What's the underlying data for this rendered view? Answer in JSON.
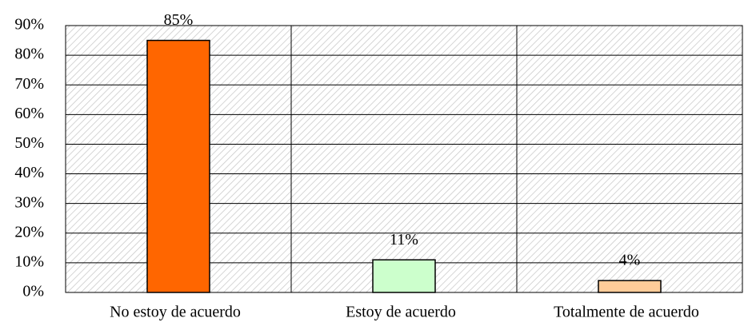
{
  "chart_data": {
    "type": "bar",
    "categories": [
      "No estoy de acuerdo",
      "Estoy de acuerdo",
      "Totalmente de acuerdo"
    ],
    "values": [
      85,
      11,
      4
    ],
    "value_labels": [
      "85%",
      "11%",
      "4%"
    ],
    "colors": [
      "#ff6600",
      "#ccffcc",
      "#ffcc99"
    ],
    "ylim": [
      0,
      90
    ],
    "yticks": [
      {
        "value": 0,
        "label": "0%"
      },
      {
        "value": 10,
        "label": "10%"
      },
      {
        "value": 20,
        "label": "20%"
      },
      {
        "value": 30,
        "label": "30%"
      },
      {
        "value": 40,
        "label": "40%"
      },
      {
        "value": 50,
        "label": "50%"
      },
      {
        "value": 60,
        "label": "60%"
      },
      {
        "value": 70,
        "label": "70%"
      },
      {
        "value": 80,
        "label": "80%"
      },
      {
        "value": 90,
        "label": "90%"
      }
    ],
    "grid": true
  }
}
